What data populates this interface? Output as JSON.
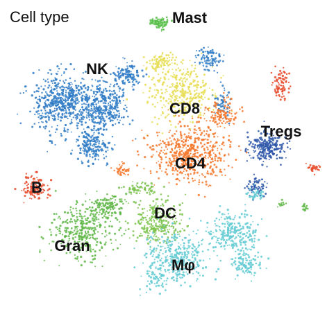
{
  "title": "Cell type",
  "chart_data": {
    "type": "scatter",
    "title": "Cell type",
    "xlabel": "",
    "ylabel": "",
    "grid": false,
    "legend": "none",
    "clusters": [
      {
        "name": "Mast",
        "color": "#5bbf4b"
      },
      {
        "name": "NK",
        "color": "#2f7bc6"
      },
      {
        "name": "CD8",
        "color": "#e8de57"
      },
      {
        "name": "CD4",
        "color": "#f4782b"
      },
      {
        "name": "Tregs",
        "color": "#2b55a8"
      },
      {
        "name": "B",
        "color": "#e84a2a"
      },
      {
        "name": "DC",
        "color": "#7cc34e"
      },
      {
        "name": "Gran",
        "color": "#62b84a"
      },
      {
        "name": "Mφ",
        "color": "#64cbd3"
      }
    ]
  }
}
